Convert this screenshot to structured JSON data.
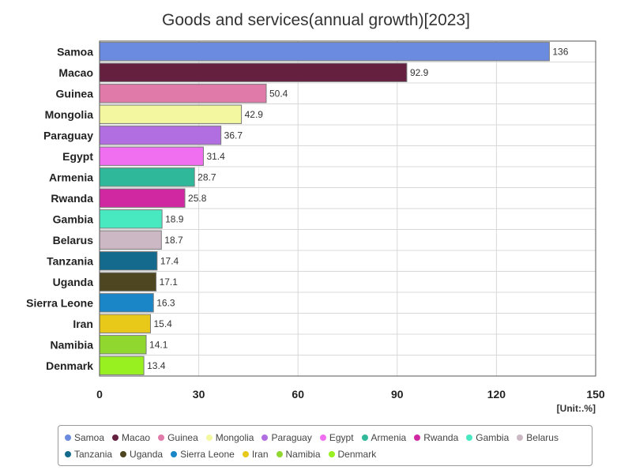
{
  "chart_data": {
    "type": "bar",
    "orientation": "horizontal",
    "title": "Goods and services(annual growth)[2023]",
    "unit_label": "[Unit:.%]",
    "xlim": [
      0,
      150
    ],
    "xticks": [
      0,
      30,
      60,
      90,
      120,
      150
    ],
    "grid": true,
    "legend_position": "bottom",
    "categories": [
      "Samoa",
      "Macao",
      "Guinea",
      "Mongolia",
      "Paraguay",
      "Egypt",
      "Armenia",
      "Rwanda",
      "Gambia",
      "Belarus",
      "Tanzania",
      "Uganda",
      "Sierra Leone",
      "Iran",
      "Namibia",
      "Denmark"
    ],
    "values": [
      136,
      92.9,
      50.4,
      42.9,
      36.7,
      31.4,
      28.7,
      25.8,
      18.9,
      18.7,
      17.4,
      17.1,
      16.3,
      15.4,
      14.1,
      13.4
    ],
    "colors": [
      "#6b8be0",
      "#652040",
      "#e07aa8",
      "#f2f7a0",
      "#b06ee0",
      "#f06ef0",
      "#2fb89a",
      "#d028a0",
      "#48e8c0",
      "#cbb8c4",
      "#136a8c",
      "#4e4620",
      "#1a86c8",
      "#e8c818",
      "#90d830",
      "#98f020"
    ]
  }
}
